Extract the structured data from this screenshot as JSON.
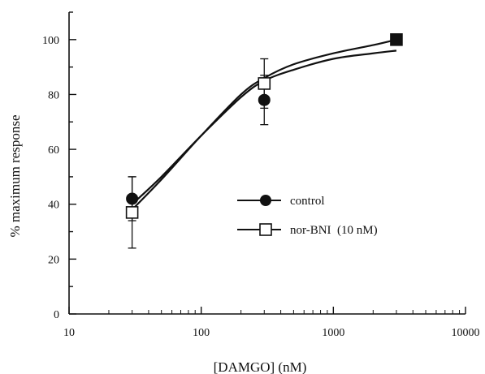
{
  "chart_data": {
    "type": "scatter",
    "title": "",
    "xlabel": "[DAMGO] (nM)",
    "ylabel": "% maximum response",
    "x_scale": "log",
    "xlim": [
      10,
      10000
    ],
    "ylim": [
      0,
      110
    ],
    "x_ticks": [
      10,
      100,
      1000,
      10000
    ],
    "x_tick_labels": [
      "10",
      "100",
      "1000",
      "10000"
    ],
    "y_ticks": [
      0,
      20,
      40,
      60,
      80,
      100
    ],
    "y_tick_labels": [
      "0",
      "20",
      "40",
      "60",
      "80",
      "100"
    ],
    "grid": false,
    "legend_position": "center-right",
    "series": [
      {
        "name": "control",
        "marker": "filled-circle",
        "color": "#111111",
        "points": [
          {
            "x": 30,
            "y": 42,
            "err": 8
          },
          {
            "x": 300,
            "y": 78,
            "err": 9
          },
          {
            "x": 3000,
            "y": 100,
            "err": 0
          }
        ],
        "fit_curve": [
          {
            "x": 30,
            "y": 40
          },
          {
            "x": 50,
            "y": 50
          },
          {
            "x": 100,
            "y": 65
          },
          {
            "x": 200,
            "y": 79
          },
          {
            "x": 300,
            "y": 85
          },
          {
            "x": 500,
            "y": 89
          },
          {
            "x": 1000,
            "y": 93
          },
          {
            "x": 2000,
            "y": 95
          },
          {
            "x": 3000,
            "y": 96
          }
        ]
      },
      {
        "name": "nor-BNI  (10 nM)",
        "marker": "open-square",
        "color": "#111111",
        "points": [
          {
            "x": 30,
            "y": 37,
            "err": 13
          },
          {
            "x": 300,
            "y": 84,
            "err": 9
          },
          {
            "x": 3000,
            "y": 100,
            "err": 0
          }
        ],
        "fit_curve": [
          {
            "x": 30,
            "y": 38
          },
          {
            "x": 50,
            "y": 49
          },
          {
            "x": 100,
            "y": 65
          },
          {
            "x": 200,
            "y": 80
          },
          {
            "x": 300,
            "y": 86
          },
          {
            "x": 500,
            "y": 91
          },
          {
            "x": 1000,
            "y": 95
          },
          {
            "x": 2000,
            "y": 98
          },
          {
            "x": 3000,
            "y": 100
          }
        ]
      }
    ]
  }
}
